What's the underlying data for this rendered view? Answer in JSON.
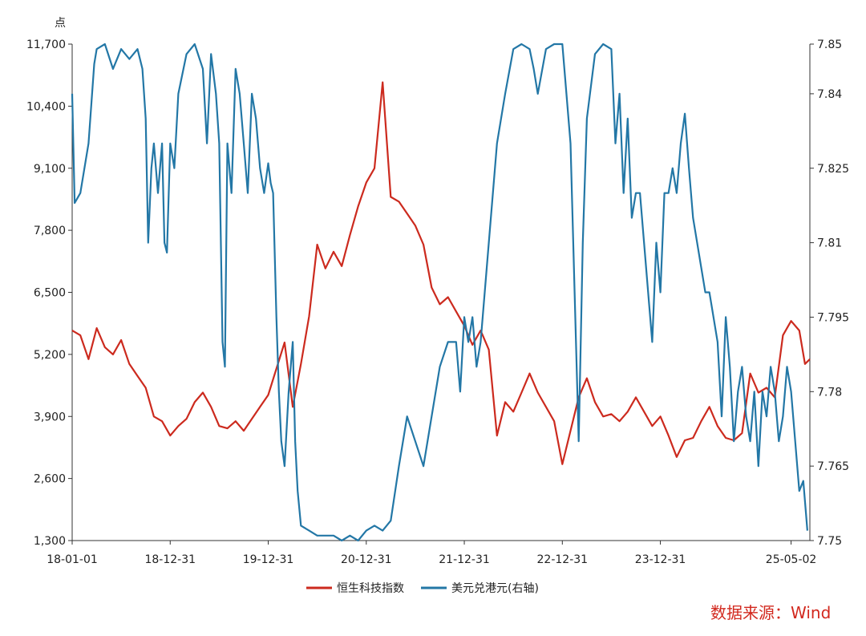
{
  "chart_data": {
    "type": "line",
    "left_axis": {
      "unit": "点",
      "ticks": [
        1300,
        2600,
        3900,
        5200,
        6500,
        7800,
        9100,
        10400,
        11700
      ],
      "ylim": [
        1300,
        11700
      ]
    },
    "right_axis": {
      "ticks": [
        "7.75",
        "7.765",
        "7.78",
        "7.795",
        "7.81",
        "7.825",
        "7.84",
        "7.85"
      ],
      "tick_values": [
        7.75,
        7.765,
        7.78,
        7.795,
        7.81,
        7.825,
        7.84,
        7.85
      ],
      "ylim": [
        7.75,
        7.85
      ]
    },
    "x_ticks": [
      {
        "label": "18-01-01",
        "x": 0
      },
      {
        "label": "18-12-31",
        "x": 12
      },
      {
        "label": "19-12-31",
        "x": 24
      },
      {
        "label": "20-12-31",
        "x": 36
      },
      {
        "label": "21-12-31",
        "x": 48
      },
      {
        "label": "22-12-31",
        "x": 60
      },
      {
        "label": "23-12-31",
        "x": 72
      },
      {
        "label": "25-05-02",
        "x": 88
      }
    ],
    "xlim": [
      0,
      88
    ],
    "grid": false,
    "legend_position": "bottom",
    "series": [
      {
        "name": "恒生科技指数",
        "axis": "left",
        "color": "#cc2a1e",
        "points": [
          [
            0,
            5700
          ],
          [
            1,
            5600
          ],
          [
            2,
            5100
          ],
          [
            3,
            5750
          ],
          [
            4,
            5350
          ],
          [
            5,
            5200
          ],
          [
            6,
            5500
          ],
          [
            7,
            5000
          ],
          [
            8,
            4750
          ],
          [
            9,
            4500
          ],
          [
            10,
            3900
          ],
          [
            11,
            3800
          ],
          [
            12,
            3500
          ],
          [
            13,
            3700
          ],
          [
            14,
            3850
          ],
          [
            15,
            4200
          ],
          [
            16,
            4400
          ],
          [
            17,
            4100
          ],
          [
            18,
            3700
          ],
          [
            19,
            3650
          ],
          [
            20,
            3800
          ],
          [
            21,
            3600
          ],
          [
            22,
            3850
          ],
          [
            23,
            4100
          ],
          [
            24,
            4350
          ],
          [
            25,
            4900
          ],
          [
            26,
            5450
          ],
          [
            27,
            4100
          ],
          [
            28,
            5000
          ],
          [
            29,
            6000
          ],
          [
            30,
            7500
          ],
          [
            31,
            7000
          ],
          [
            32,
            7350
          ],
          [
            33,
            7050
          ],
          [
            34,
            7700
          ],
          [
            35,
            8300
          ],
          [
            36,
            8800
          ],
          [
            37,
            9100
          ],
          [
            38,
            10900
          ],
          [
            39,
            8500
          ],
          [
            40,
            8400
          ],
          [
            41,
            8150
          ],
          [
            42,
            7900
          ],
          [
            43,
            7500
          ],
          [
            44,
            6600
          ],
          [
            45,
            6250
          ],
          [
            46,
            6400
          ],
          [
            47,
            6100
          ],
          [
            48,
            5800
          ],
          [
            49,
            5400
          ],
          [
            50,
            5700
          ],
          [
            51,
            5300
          ],
          [
            52,
            3500
          ],
          [
            53,
            4200
          ],
          [
            54,
            4000
          ],
          [
            55,
            4400
          ],
          [
            56,
            4800
          ],
          [
            57,
            4400
          ],
          [
            58,
            4100
          ],
          [
            59,
            3800
          ],
          [
            60,
            2900
          ],
          [
            61,
            3600
          ],
          [
            62,
            4300
          ],
          [
            63,
            4700
          ],
          [
            64,
            4200
          ],
          [
            65,
            3900
          ],
          [
            66,
            3950
          ],
          [
            67,
            3800
          ],
          [
            68,
            4000
          ],
          [
            69,
            4300
          ],
          [
            70,
            4000
          ],
          [
            71,
            3700
          ],
          [
            72,
            3900
          ],
          [
            73,
            3500
          ],
          [
            74,
            3050
          ],
          [
            75,
            3400
          ],
          [
            76,
            3450
          ],
          [
            77,
            3800
          ],
          [
            78,
            4100
          ],
          [
            79,
            3700
          ],
          [
            80,
            3450
          ],
          [
            81,
            3400
          ],
          [
            82,
            3550
          ],
          [
            83,
            4800
          ],
          [
            84,
            4400
          ],
          [
            85,
            4500
          ],
          [
            86,
            4300
          ],
          [
            87,
            5600
          ],
          [
            88,
            5900
          ],
          [
            89,
            5700
          ],
          [
            89.7,
            5000
          ],
          [
            90.3,
            5100
          ]
        ]
      },
      {
        "name": "美元兑港元(右轴)",
        "axis": "right",
        "color": "#2377a6",
        "points": [
          [
            0,
            7.84
          ],
          [
            0.3,
            7.818
          ],
          [
            1,
            7.82
          ],
          [
            2,
            7.83
          ],
          [
            2.7,
            7.846
          ],
          [
            3,
            7.849
          ],
          [
            4,
            7.85
          ],
          [
            5,
            7.845
          ],
          [
            6,
            7.849
          ],
          [
            7,
            7.847
          ],
          [
            8,
            7.849
          ],
          [
            8.6,
            7.845
          ],
          [
            9,
            7.835
          ],
          [
            9.3,
            7.81
          ],
          [
            9.7,
            7.825
          ],
          [
            10,
            7.83
          ],
          [
            10.5,
            7.82
          ],
          [
            11,
            7.83
          ],
          [
            11.3,
            7.81
          ],
          [
            11.6,
            7.808
          ],
          [
            12,
            7.83
          ],
          [
            12.5,
            7.825
          ],
          [
            13,
            7.84
          ],
          [
            14,
            7.848
          ],
          [
            15,
            7.85
          ],
          [
            16,
            7.845
          ],
          [
            16.5,
            7.83
          ],
          [
            17,
            7.848
          ],
          [
            17.6,
            7.84
          ],
          [
            18,
            7.83
          ],
          [
            18.4,
            7.79
          ],
          [
            18.7,
            7.785
          ],
          [
            19,
            7.83
          ],
          [
            19.5,
            7.82
          ],
          [
            20,
            7.845
          ],
          [
            20.5,
            7.84
          ],
          [
            21,
            7.83
          ],
          [
            21.5,
            7.82
          ],
          [
            22,
            7.84
          ],
          [
            22.5,
            7.835
          ],
          [
            23,
            7.825
          ],
          [
            23.5,
            7.82
          ],
          [
            24,
            7.826
          ],
          [
            24.3,
            7.822
          ],
          [
            24.6,
            7.82
          ],
          [
            25,
            7.795
          ],
          [
            25.3,
            7.78
          ],
          [
            25.6,
            7.77
          ],
          [
            26,
            7.765
          ],
          [
            26.5,
            7.78
          ],
          [
            27,
            7.79
          ],
          [
            27.3,
            7.77
          ],
          [
            27.6,
            7.76
          ],
          [
            28,
            7.753
          ],
          [
            29,
            7.752
          ],
          [
            30,
            7.751
          ],
          [
            31,
            7.751
          ],
          [
            32,
            7.751
          ],
          [
            33,
            7.75
          ],
          [
            34,
            7.751
          ],
          [
            35,
            7.75
          ],
          [
            36,
            7.752
          ],
          [
            37,
            7.753
          ],
          [
            38,
            7.752
          ],
          [
            39,
            7.754
          ],
          [
            40,
            7.765
          ],
          [
            41,
            7.775
          ],
          [
            42,
            7.77
          ],
          [
            43,
            7.765
          ],
          [
            44,
            7.775
          ],
          [
            45,
            7.785
          ],
          [
            46,
            7.79
          ],
          [
            47,
            7.79
          ],
          [
            47.5,
            7.78
          ],
          [
            48,
            7.795
          ],
          [
            48.5,
            7.79
          ],
          [
            49,
            7.795
          ],
          [
            49.5,
            7.785
          ],
          [
            50,
            7.79
          ],
          [
            50.5,
            7.8
          ],
          [
            51,
            7.81
          ],
          [
            52,
            7.83
          ],
          [
            53,
            7.84
          ],
          [
            54,
            7.849
          ],
          [
            55,
            7.85
          ],
          [
            56,
            7.849
          ],
          [
            56.5,
            7.845
          ],
          [
            57,
            7.84
          ],
          [
            58,
            7.849
          ],
          [
            59,
            7.85
          ],
          [
            60,
            7.85
          ],
          [
            60.5,
            7.84
          ],
          [
            61,
            7.83
          ],
          [
            61.5,
            7.8
          ],
          [
            62,
            7.77
          ],
          [
            62.5,
            7.81
          ],
          [
            63,
            7.835
          ],
          [
            64,
            7.848
          ],
          [
            65,
            7.85
          ],
          [
            66,
            7.849
          ],
          [
            66.5,
            7.83
          ],
          [
            67,
            7.84
          ],
          [
            67.5,
            7.82
          ],
          [
            68,
            7.835
          ],
          [
            68.5,
            7.815
          ],
          [
            69,
            7.82
          ],
          [
            69.5,
            7.82
          ],
          [
            70,
            7.81
          ],
          [
            70.5,
            7.8
          ],
          [
            71,
            7.79
          ],
          [
            71.5,
            7.81
          ],
          [
            72,
            7.8
          ],
          [
            72.5,
            7.82
          ],
          [
            73,
            7.82
          ],
          [
            73.5,
            7.825
          ],
          [
            74,
            7.82
          ],
          [
            74.5,
            7.83
          ],
          [
            75,
            7.836
          ],
          [
            75.5,
            7.825
          ],
          [
            76,
            7.815
          ],
          [
            76.5,
            7.81
          ],
          [
            77,
            7.805
          ],
          [
            77.5,
            7.8
          ],
          [
            78,
            7.8
          ],
          [
            78.5,
            7.795
          ],
          [
            79,
            7.79
          ],
          [
            79.5,
            7.775
          ],
          [
            80,
            7.795
          ],
          [
            80.5,
            7.785
          ],
          [
            81,
            7.77
          ],
          [
            81.5,
            7.78
          ],
          [
            82,
            7.785
          ],
          [
            82.5,
            7.775
          ],
          [
            83,
            7.77
          ],
          [
            83.5,
            7.78
          ],
          [
            84,
            7.765
          ],
          [
            84.5,
            7.78
          ],
          [
            85,
            7.775
          ],
          [
            85.5,
            7.785
          ],
          [
            86,
            7.78
          ],
          [
            86.5,
            7.77
          ],
          [
            87,
            7.775
          ],
          [
            87.5,
            7.785
          ],
          [
            88,
            7.78
          ],
          [
            88.5,
            7.77
          ],
          [
            89,
            7.76
          ],
          [
            89.5,
            7.762
          ],
          [
            90,
            7.752
          ]
        ]
      }
    ]
  },
  "source_text": "数据来源：Wind"
}
